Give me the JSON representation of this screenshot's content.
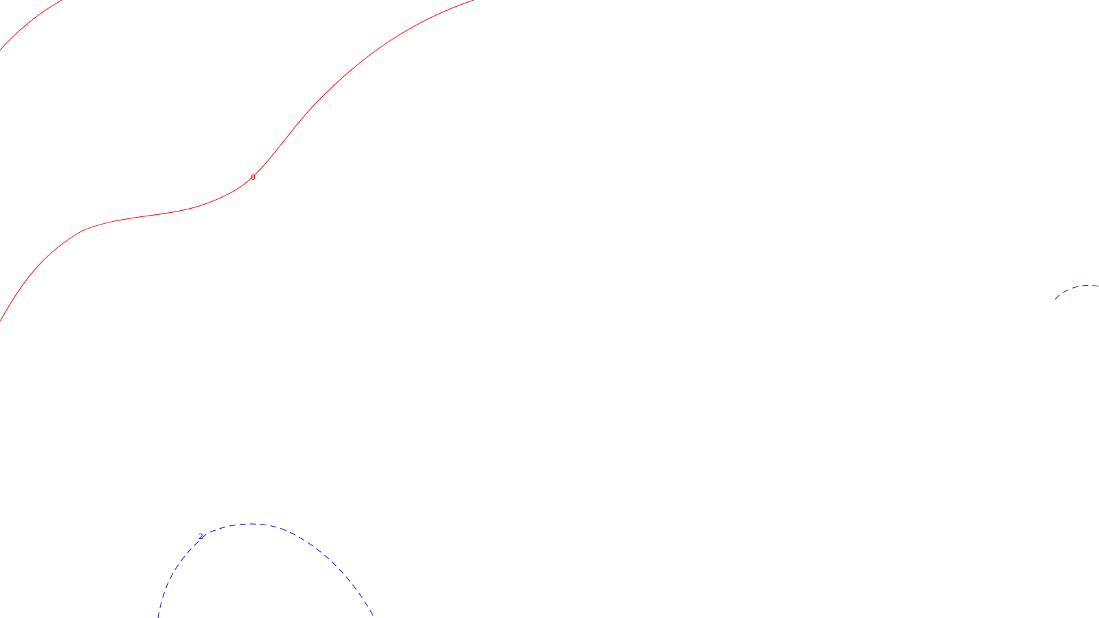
{
  "contours": [
    {
      "id": "contour-0-upper",
      "level": "0",
      "style": "solid",
      "color": "#ff0000"
    },
    {
      "id": "contour-0-lower",
      "level": "0",
      "style": "solid",
      "color": "#ff0000",
      "label": "0"
    },
    {
      "id": "contour-2-bottom",
      "level": "2",
      "style": "dashed",
      "color": "#0000ff",
      "label": "2"
    },
    {
      "id": "contour-2-right",
      "level": "2",
      "style": "dashed",
      "color": "#0000ff"
    }
  ],
  "colors": {
    "background": "#ffffff",
    "negative_zero_contour": "#ff0000",
    "positive_contour": "#0000ff"
  }
}
